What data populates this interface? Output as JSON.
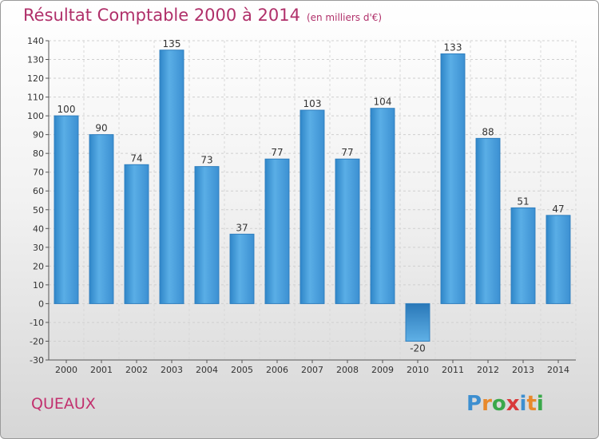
{
  "chart_data": {
    "type": "bar",
    "title": "Résultat Comptable 2000 à 2014",
    "subtitle": "(en milliers d'€)",
    "categories": [
      "2000",
      "2001",
      "2002",
      "2003",
      "2004",
      "2005",
      "2006",
      "2007",
      "2008",
      "2009",
      "2010",
      "2011",
      "2012",
      "2013",
      "2014"
    ],
    "values": [
      100,
      90,
      74,
      135,
      73,
      37,
      77,
      103,
      77,
      104,
      -20,
      133,
      88,
      51,
      47
    ],
    "ylim": [
      -30,
      140
    ],
    "yticks": [
      -30,
      -20,
      -10,
      0,
      10,
      20,
      30,
      40,
      50,
      60,
      70,
      80,
      90,
      100,
      110,
      120,
      130,
      140
    ],
    "xlabel": "",
    "ylabel": "",
    "grid": true,
    "bar_color": "#4fa3dd",
    "bar_edge_color": "#2f7fbf"
  },
  "footer": {
    "commune": "QUEAUX",
    "logo_text": "Proxiti",
    "logo_letters": [
      {
        "char": "P",
        "color": "#3d8fd0"
      },
      {
        "char": "r",
        "color": "#e8892b"
      },
      {
        "char": "o",
        "color": "#3aa84a"
      },
      {
        "char": "x",
        "color": "#d93a3a"
      },
      {
        "char": "i",
        "color": "#3d8fd0"
      },
      {
        "char": "t",
        "color": "#e8892b"
      },
      {
        "char": "i",
        "color": "#3aa84a"
      }
    ]
  }
}
